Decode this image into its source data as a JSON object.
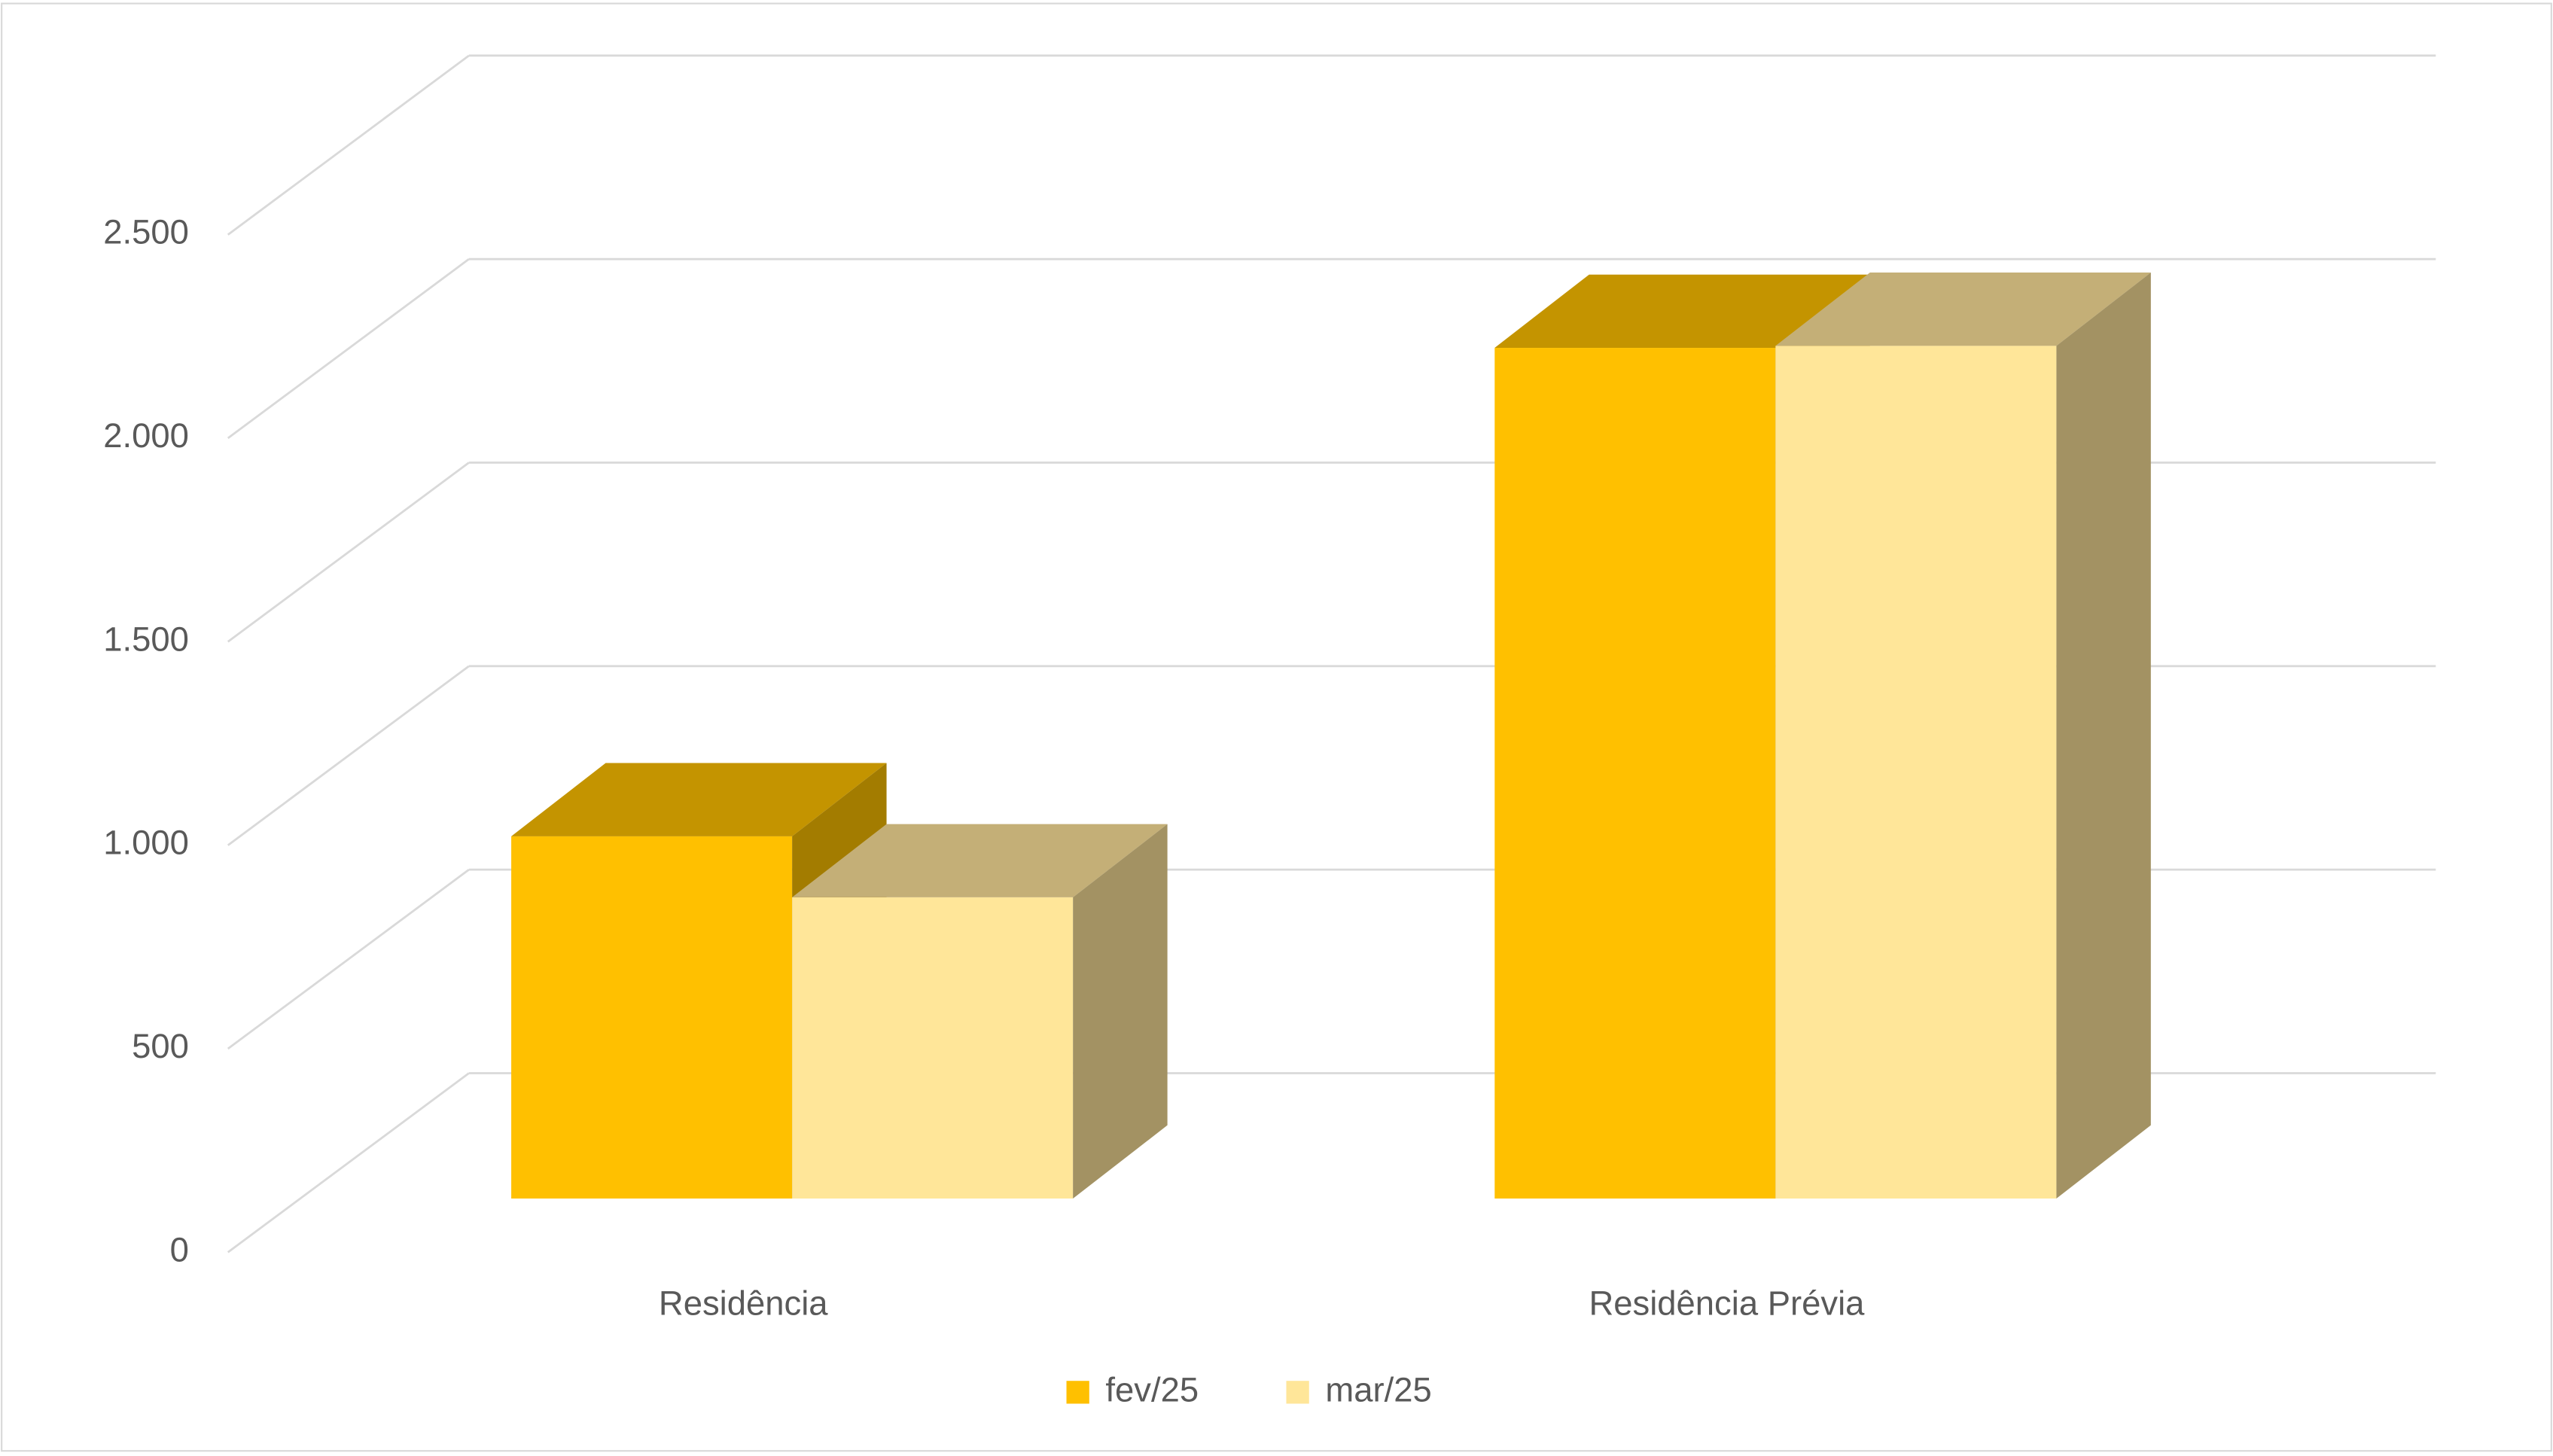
{
  "chart_data": {
    "type": "bar3d",
    "categories": [
      "Residência",
      "Residência Prévia"
    ],
    "series": [
      {
        "name": "fev/25",
        "color": "#FFC000",
        "top_color": "#C49400",
        "side_color": "#A37C00",
        "values": [
          890,
          2090
        ]
      },
      {
        "name": "mar/25",
        "color": "#FFE699",
        "top_color": "#C4AF77",
        "side_color": "#A39263",
        "values": [
          740,
          2095
        ]
      }
    ],
    "ylim": [
      0,
      2500
    ],
    "yticks": [
      0,
      {
        "value": 500,
        "label": "500"
      },
      {
        "value": 1000,
        "label": "1.000"
      },
      {
        "value": 1500,
        "label": "1.500"
      },
      {
        "value": 2000,
        "label": "2.000"
      },
      {
        "value": 2500,
        "label": "2.500"
      }
    ],
    "grid": true,
    "legend": "bottom"
  }
}
